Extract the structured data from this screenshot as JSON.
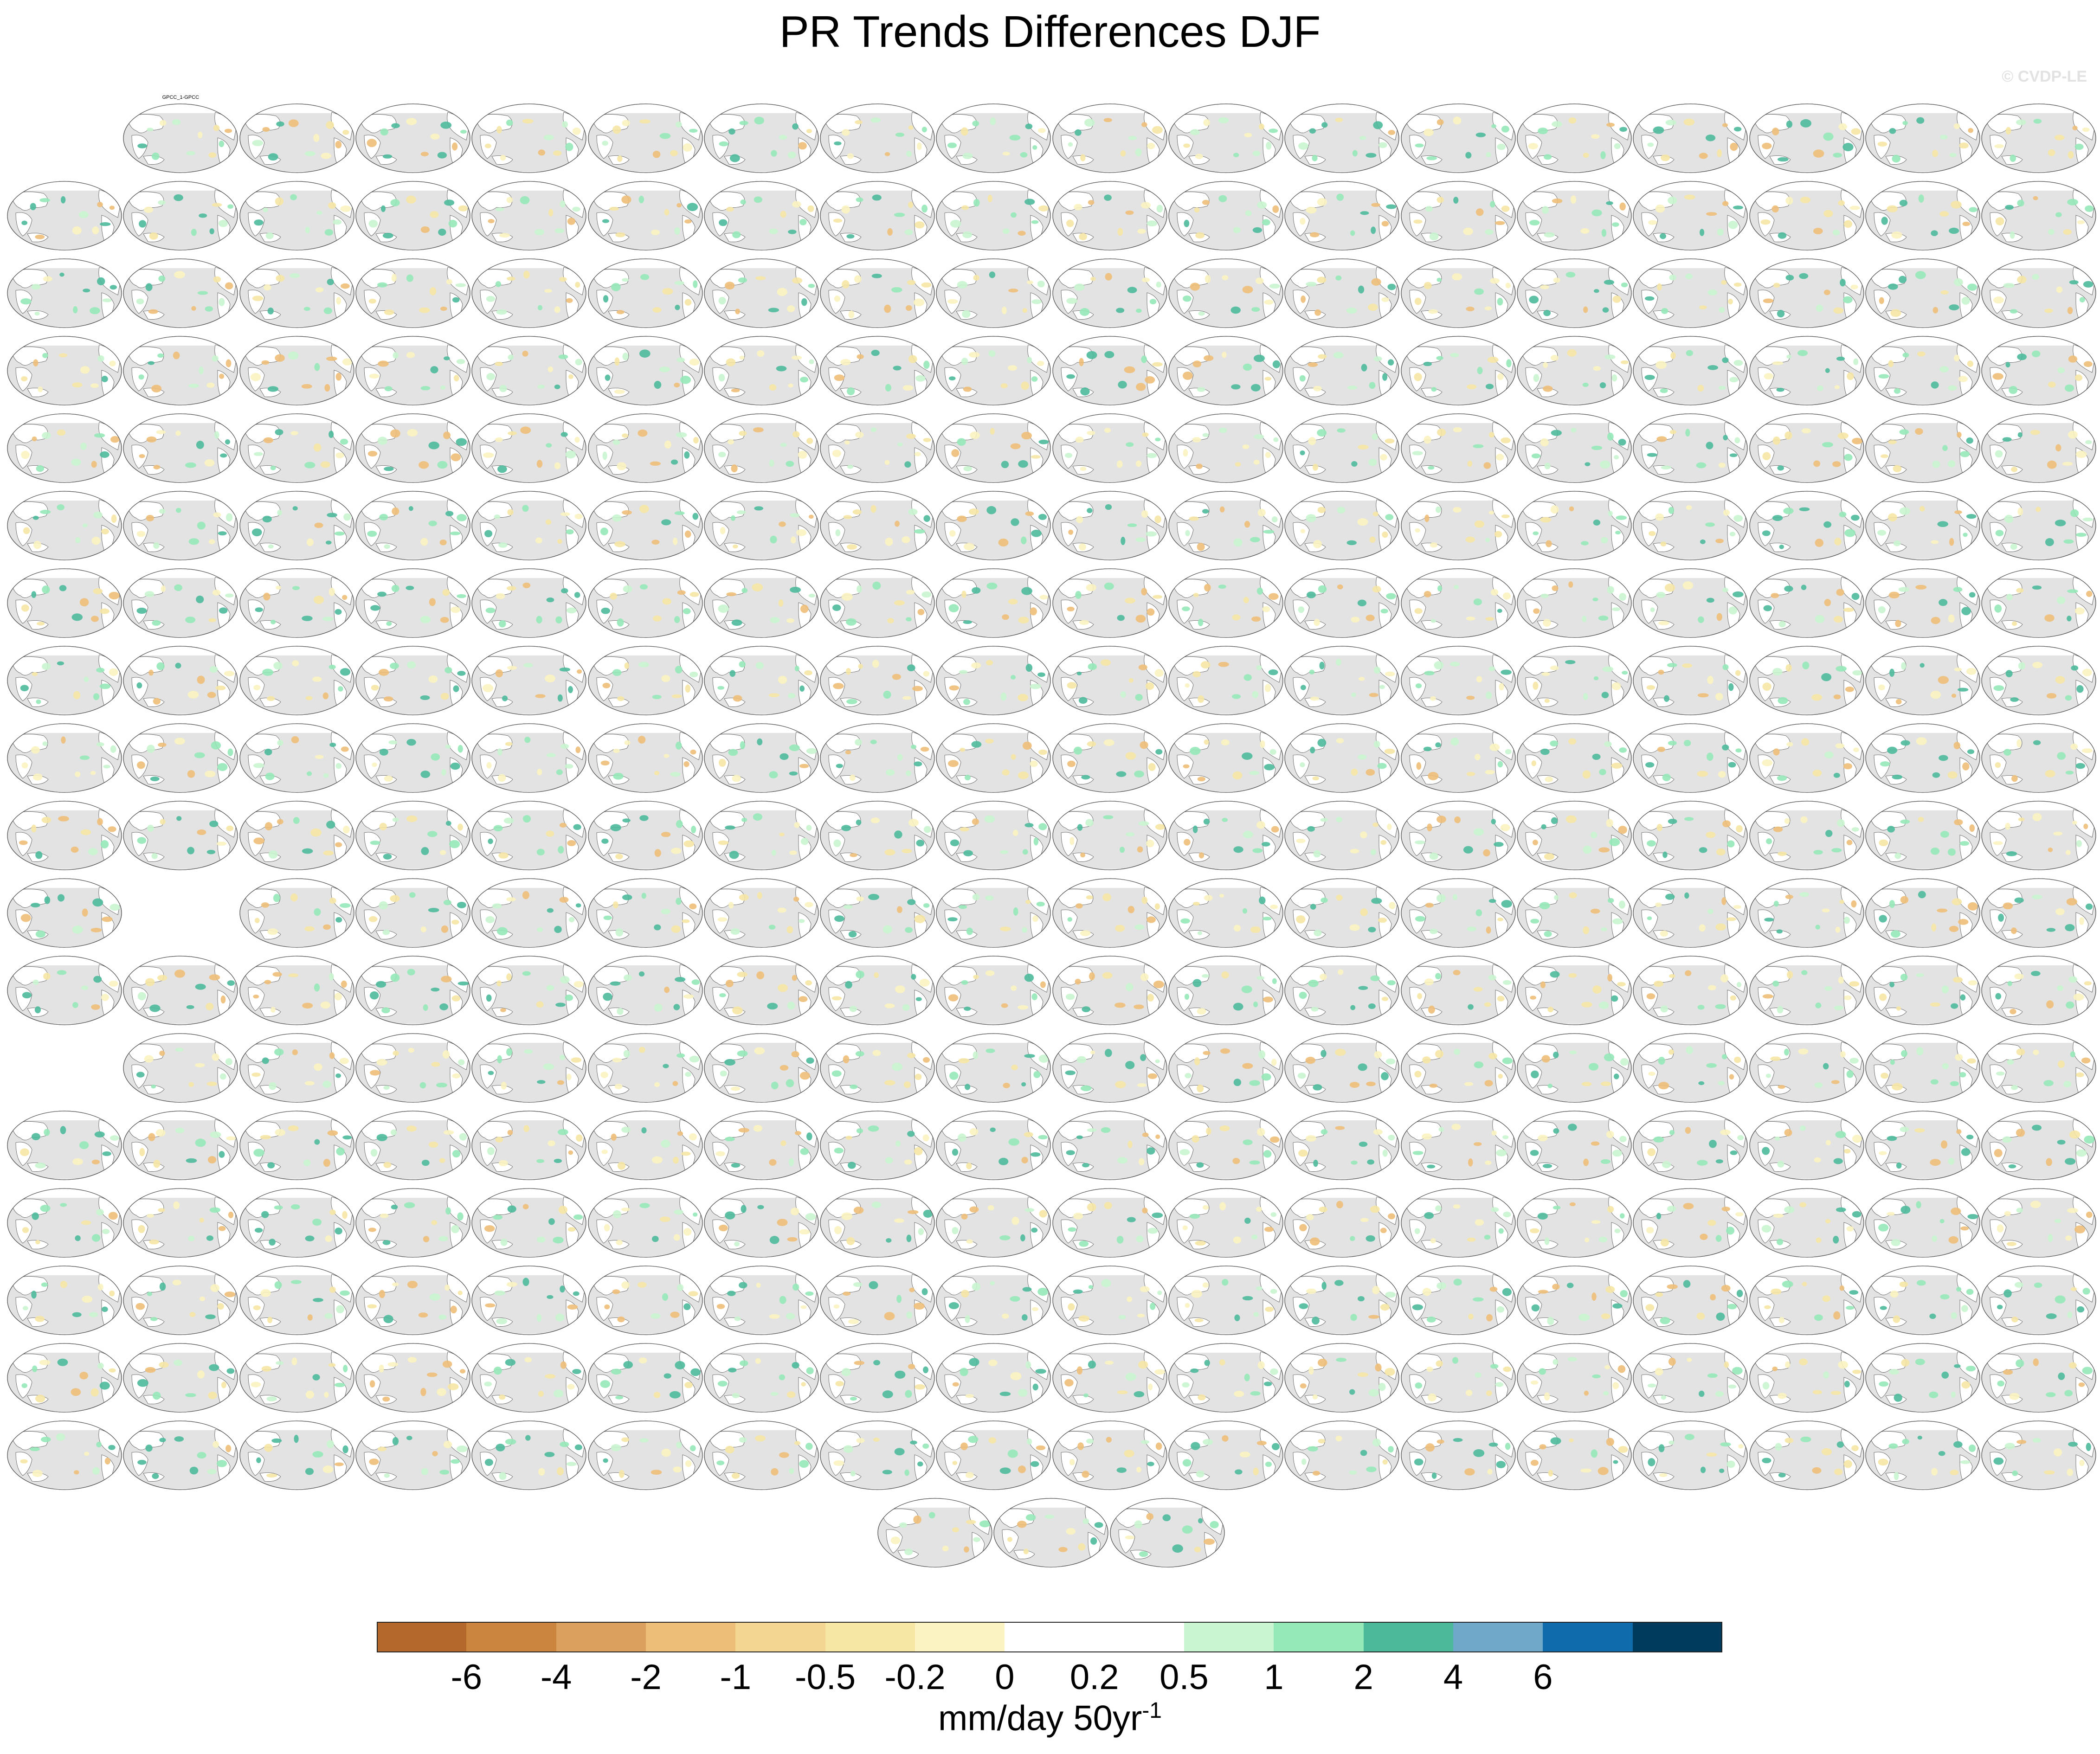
{
  "title": "PR Trends Differences DJF",
  "watermark": "© CVDP-LE",
  "colorbar": {
    "colors": [
      "#b4682c",
      "#cb853f",
      "#dca05e",
      "#edbe78",
      "#f2d692",
      "#f6e7a4",
      "#fbf3c1",
      "#ffffff",
      "#ffffff",
      "#c9f5d0",
      "#95e8b7",
      "#4cb99b",
      "#6fa8c8",
      "#0f6bab",
      "#003b5e"
    ],
    "tick_labels": [
      "-6",
      "-4",
      "-2",
      "-1",
      "-0.5",
      "-0.2",
      "0",
      "0.2",
      "0.5",
      "1",
      "2",
      "4",
      "6"
    ],
    "units": "mm/day 50yr",
    "units_exponent": "-1"
  },
  "label_colors": {
    "obs": "#000000",
    "canesm5": "#2a7fbf",
    "cesm2": "#9a9a9a",
    "cnrm": "#9a9a9a",
    "giss": "#b3452f",
    "ipsl": "#6f6fd0",
    "miroc": "#e0a64a"
  },
  "panels": {
    "rows": 18,
    "cols": 18,
    "first_panel_label": "GPCC_1-GPCC",
    "empty_slots": [
      0,
      181,
      216
    ]
  }
}
